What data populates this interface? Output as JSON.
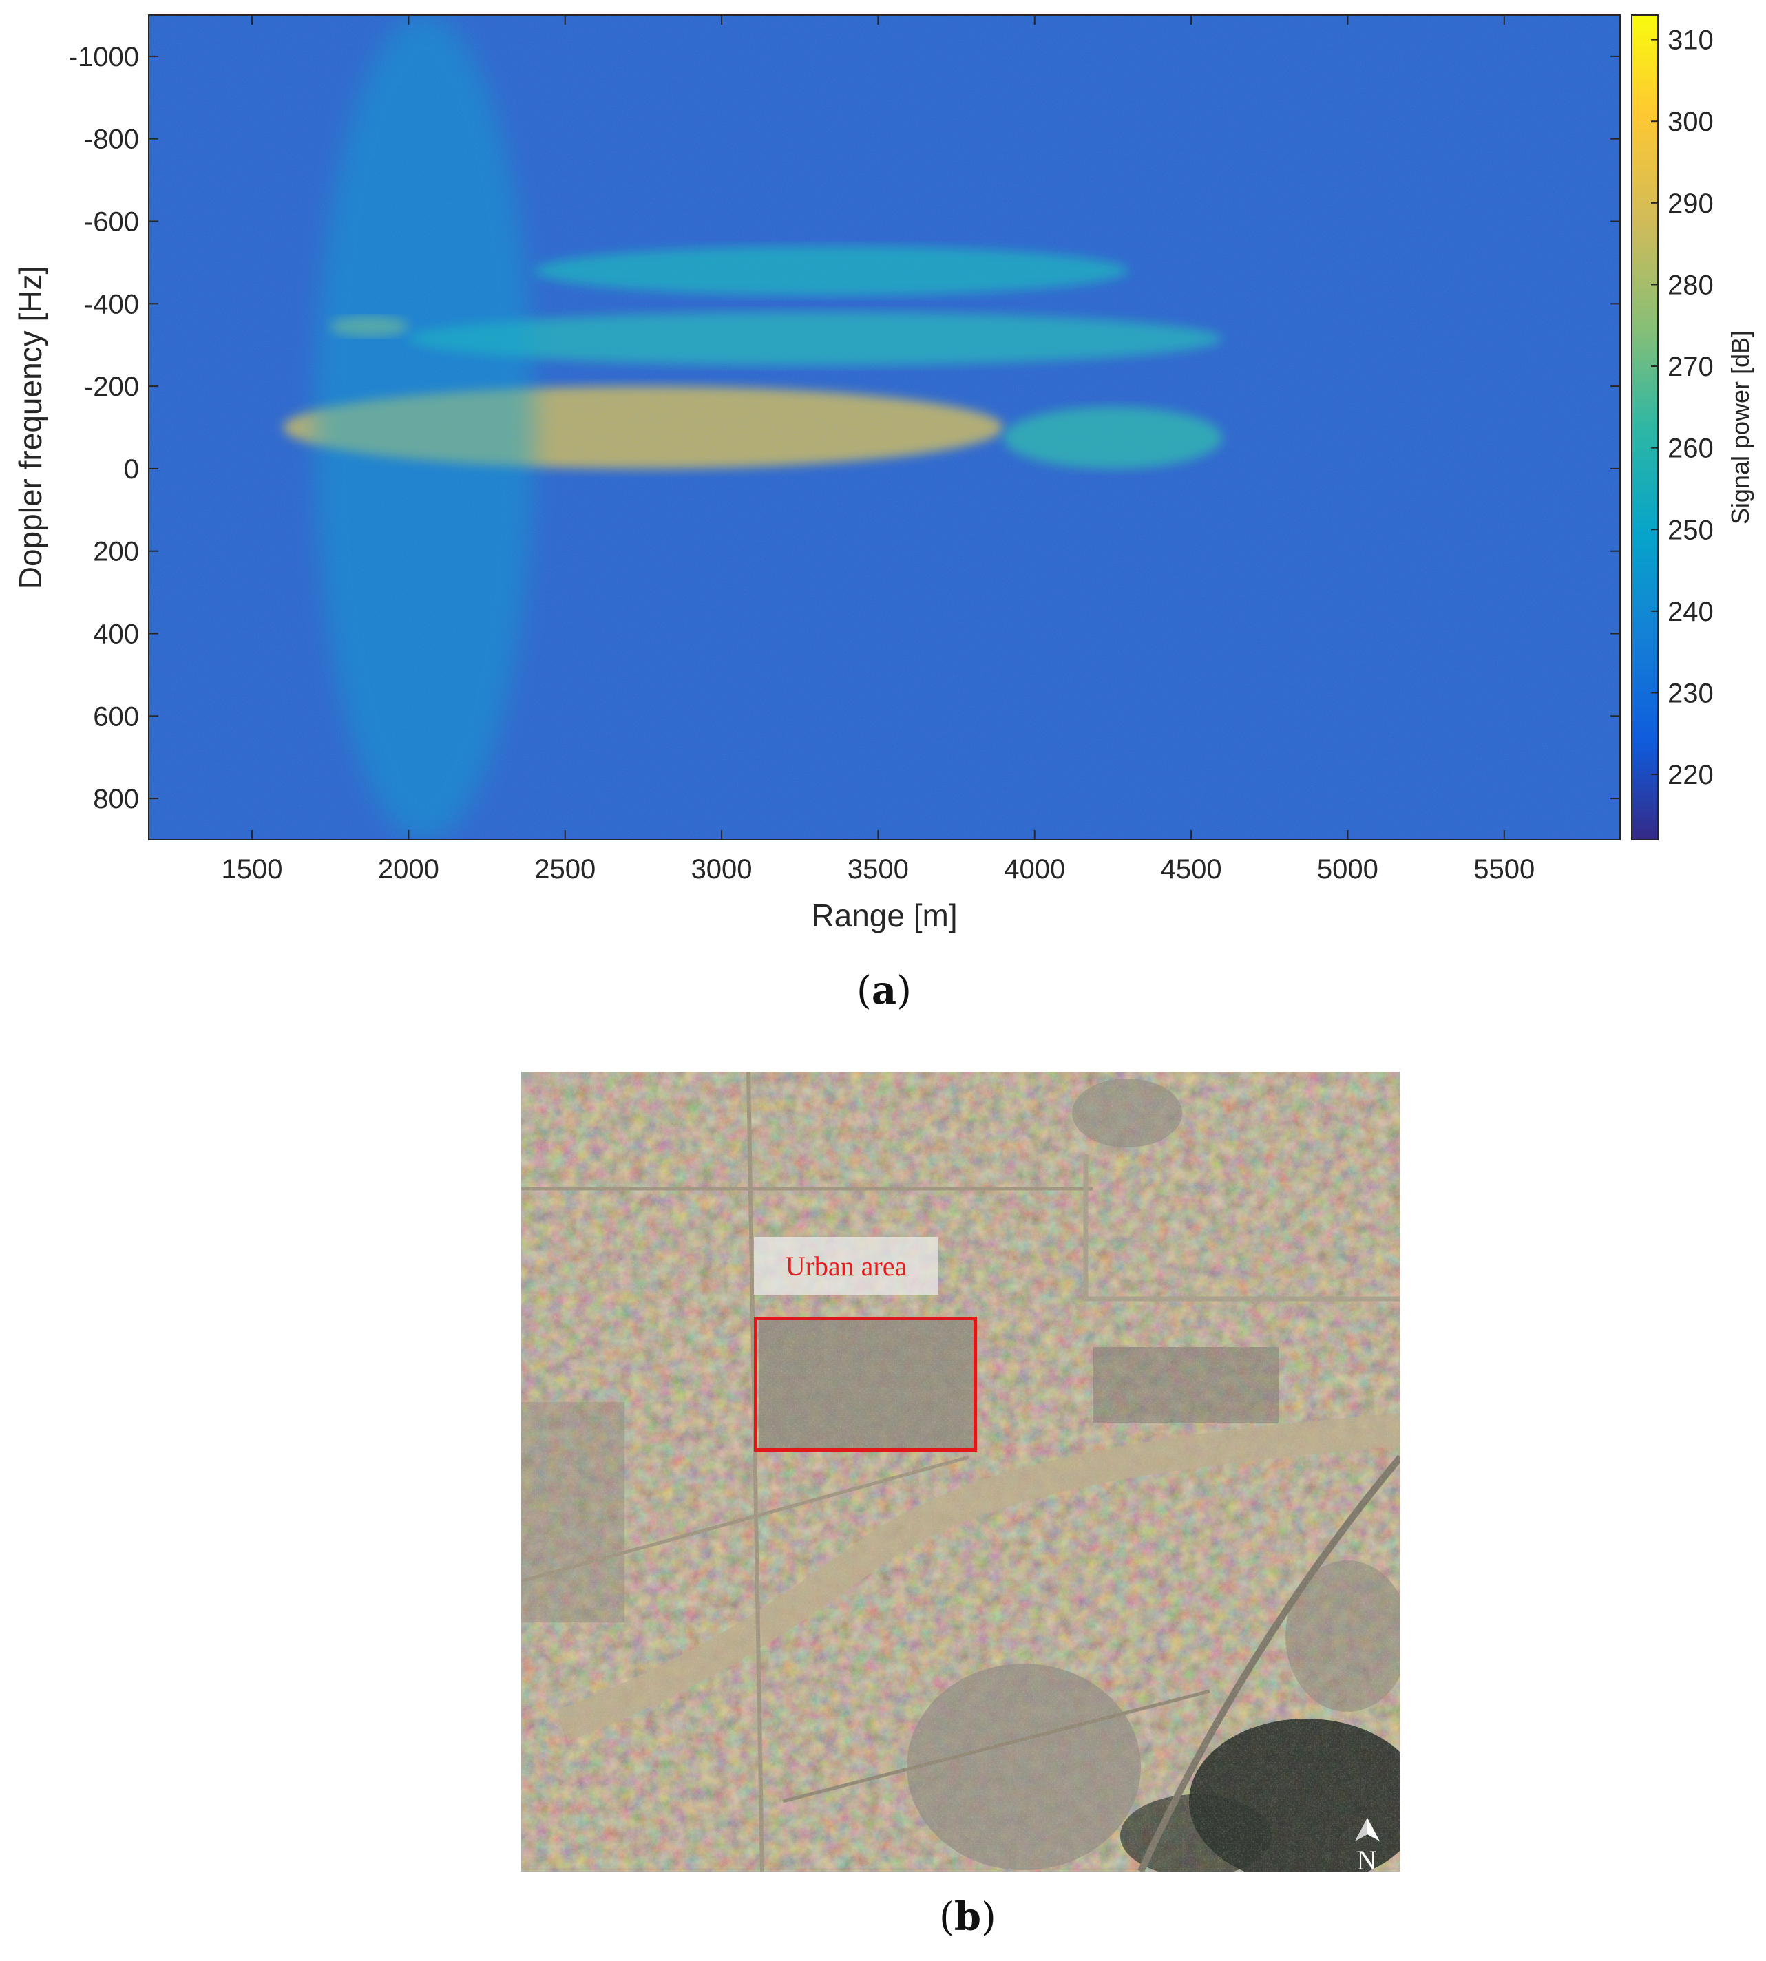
{
  "chart_data": {
    "type": "heatmap",
    "title": "",
    "xlabel": "Range [m]",
    "ylabel": "Doppler frequency [Hz]",
    "xlim": [
      1170,
      5870
    ],
    "ylim": [
      -1100,
      900
    ],
    "y_reversed": true,
    "xticks": [
      1500,
      2000,
      2500,
      3000,
      3500,
      4000,
      4500,
      5000,
      5500
    ],
    "yticks": [
      -1000,
      -800,
      -600,
      -400,
      -200,
      0,
      200,
      400,
      600,
      800
    ],
    "colorbar": {
      "label": "Signal power [dB]",
      "range": [
        212,
        313
      ],
      "ticks": [
        220,
        230,
        240,
        250,
        260,
        270,
        280,
        290,
        300,
        310
      ],
      "colormap": "parula",
      "stops": [
        "#352a87",
        "#0f5cdd",
        "#1481d6",
        "#06a4ca",
        "#2eb7a4",
        "#87bf77",
        "#d1bb59",
        "#fec832",
        "#f9fb0e"
      ]
    },
    "features": [
      {
        "range": [
          1600,
          3900
        ],
        "doppler": [
          -200,
          0
        ],
        "level_db": 292
      },
      {
        "range": [
          3900,
          4600
        ],
        "doppler": [
          -150,
          0
        ],
        "level_db": 262
      },
      {
        "range": [
          1750,
          2000
        ],
        "doppler": [
          -370,
          -320
        ],
        "level_db": 282
      },
      {
        "range": [
          2000,
          4600
        ],
        "doppler": [
          -380,
          -250
        ],
        "level_db": 258
      },
      {
        "range": [
          2400,
          4300
        ],
        "doppler": [
          -540,
          -420
        ],
        "level_db": 256
      },
      {
        "range": [
          1700,
          2400
        ],
        "doppler": [
          -1100,
          900
        ],
        "level_db": 250
      }
    ],
    "grid": false
  },
  "panel_a_label": "a",
  "panel_b_label": "b",
  "map": {
    "label": "Urban area",
    "north": "N"
  }
}
